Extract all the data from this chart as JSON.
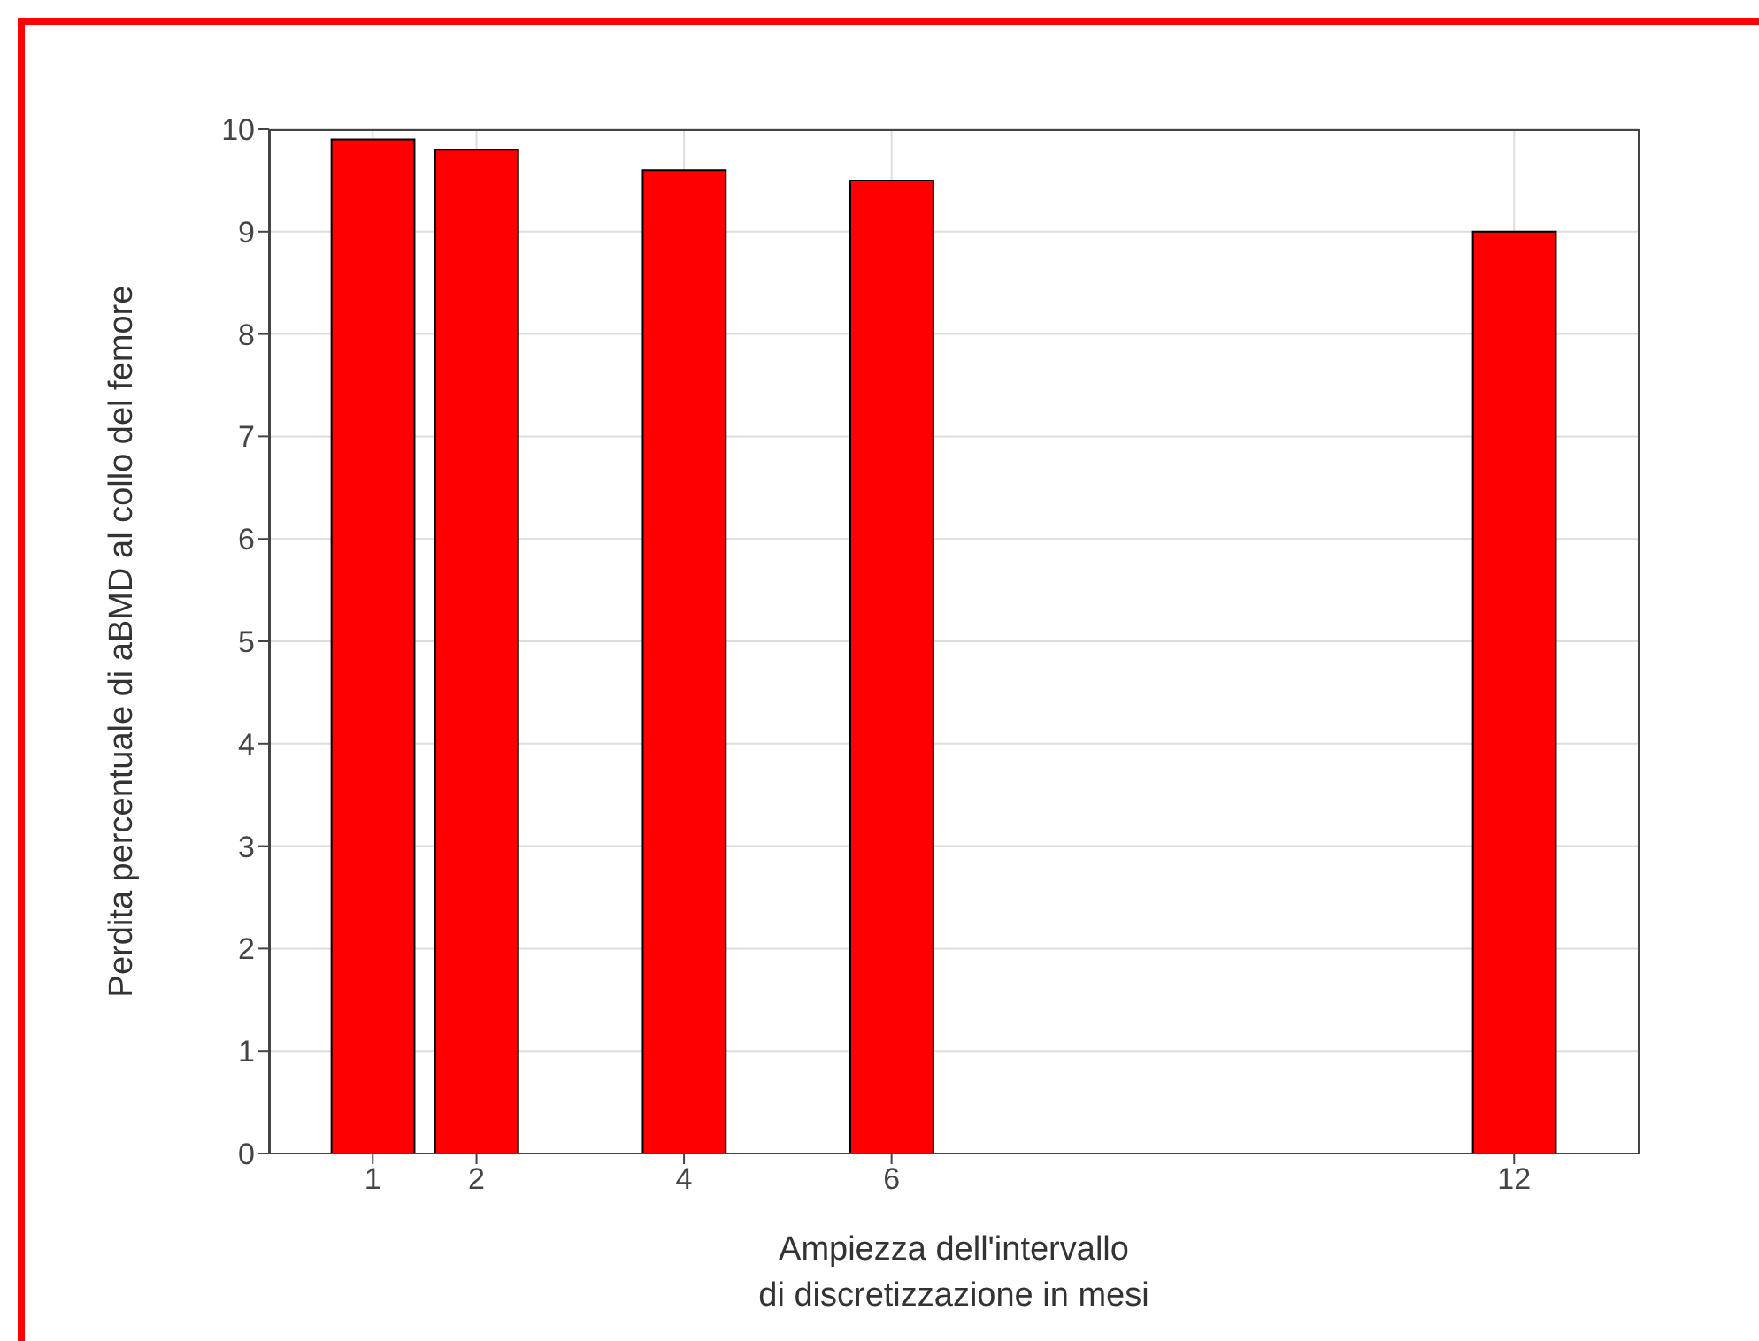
{
  "chart_data": {
    "type": "bar",
    "xlabel": "Ampiezza dell'intervallo\ndi discretizzazione in mesi",
    "ylabel": "Perdita percentuale di aBMD al collo del femore",
    "x": [
      1,
      2,
      4,
      6,
      12
    ],
    "values": [
      9.9,
      9.8,
      9.6,
      9.5,
      9.0
    ],
    "color": "#ff0000",
    "xlim": [
      0,
      13.2
    ],
    "xticks": [
      1,
      2,
      4,
      6,
      12
    ],
    "ylim": [
      0,
      10
    ],
    "yticks": [
      0,
      1,
      2,
      3,
      4,
      5,
      6,
      7,
      8,
      9,
      10
    ],
    "grid": true
  }
}
